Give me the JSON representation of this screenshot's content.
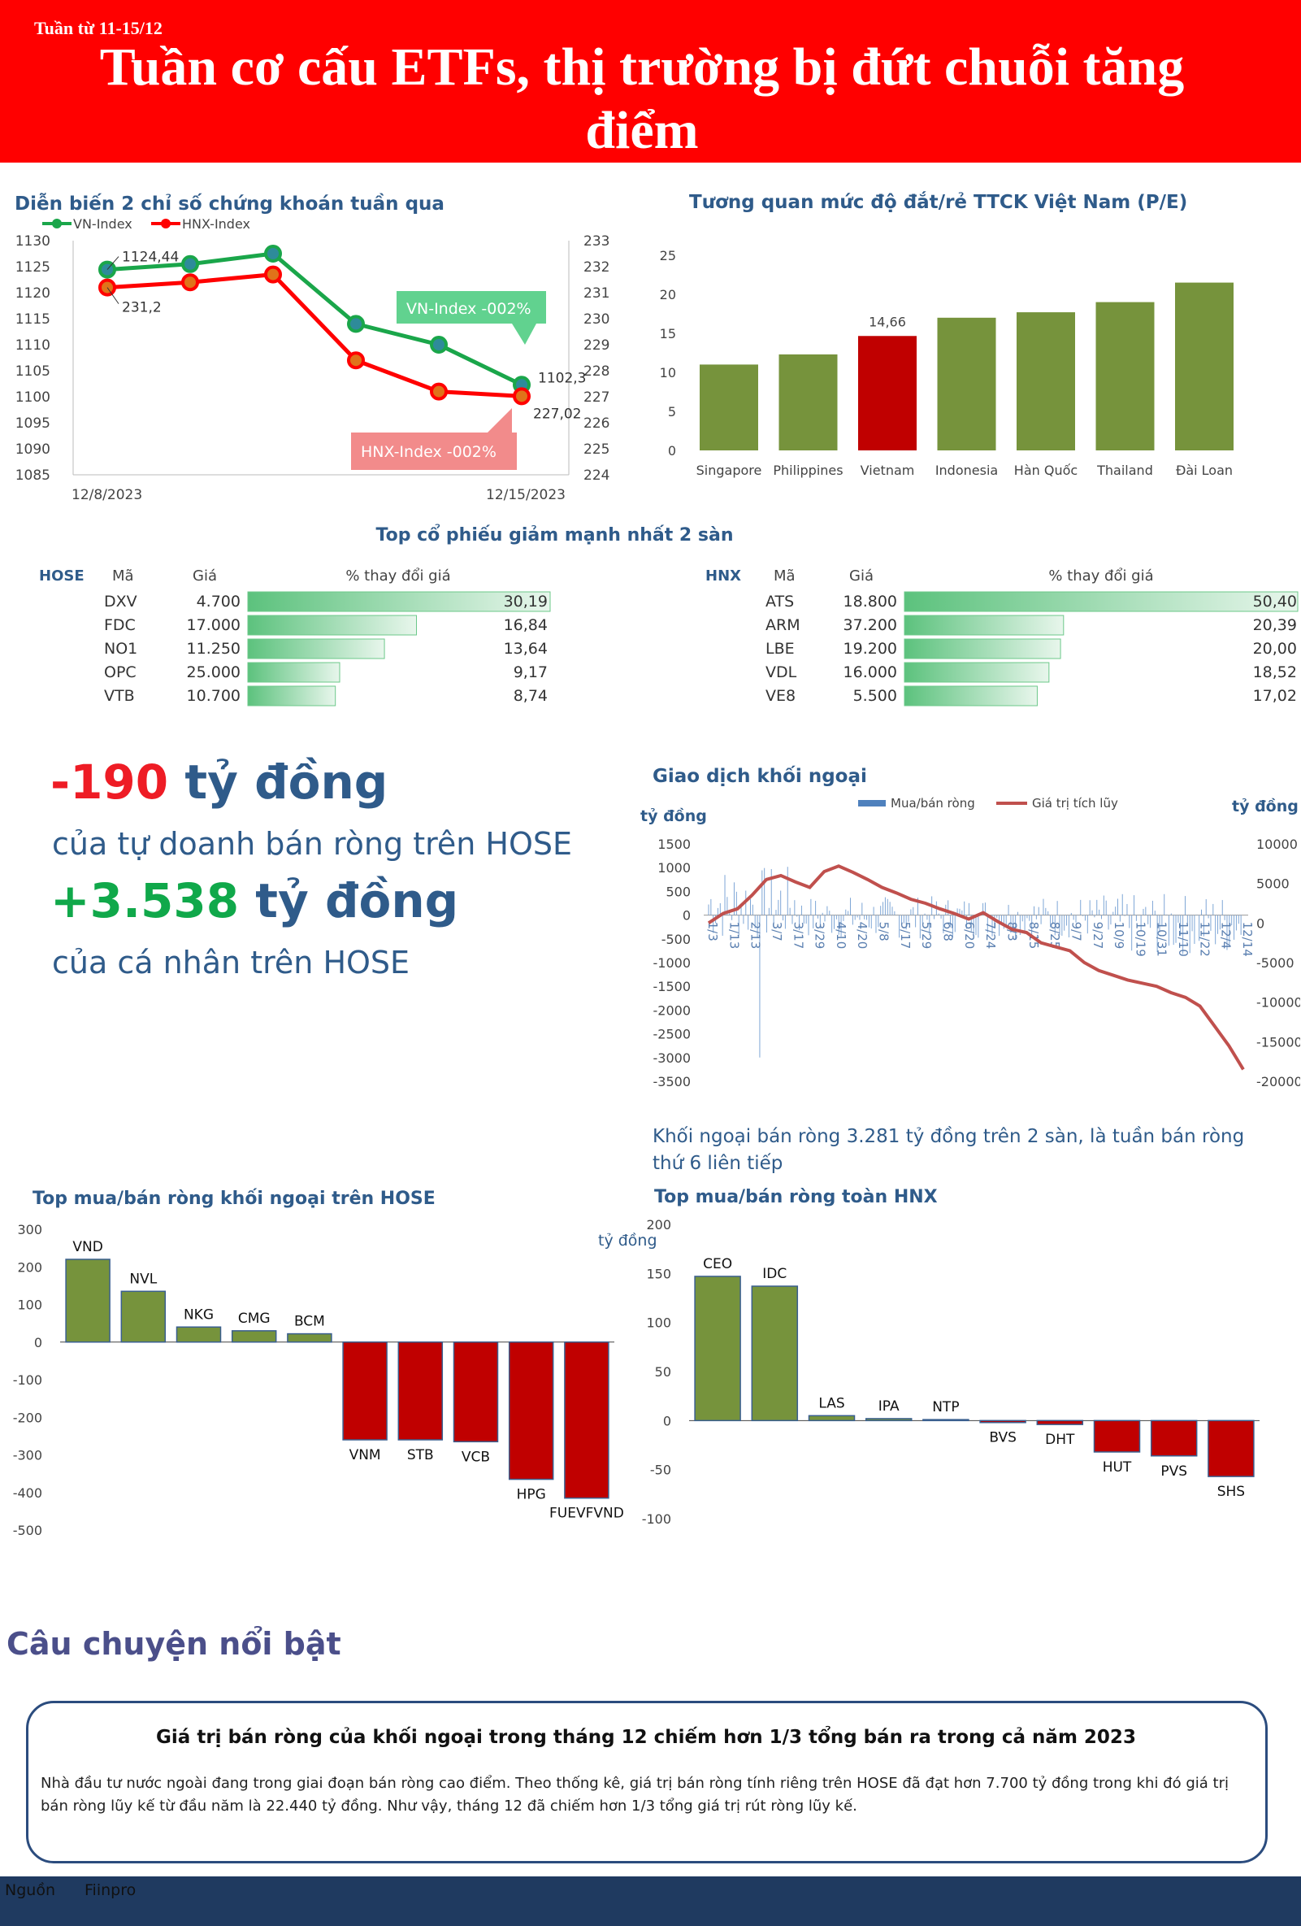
{
  "header": {
    "week": "Tuần từ 11-15/12",
    "title": "Tuần cơ cấu ETFs, thị trường bị đứt chuỗi tăng điểm"
  },
  "index_chart": {
    "title": "Diễn biến 2 chỉ số chứng khoán tuần qua",
    "chart_data": {
      "type": "line",
      "x_labels": [
        "12/8/2023",
        "12/15/2023"
      ],
      "series": [
        {
          "name": "VN-Index",
          "color": "#1aa64a",
          "axis": "left",
          "values": [
            1124.44,
            1125.5,
            1127.5,
            1114.0,
            1110.0,
            1102.3
          ],
          "first_label": "1124,44",
          "last_label": "1102,3"
        },
        {
          "name": "HNX-Index",
          "color": "#ff0000",
          "axis": "right",
          "values": [
            231.2,
            231.4,
            231.7,
            228.4,
            227.2,
            227.02
          ],
          "first_label": "231,2",
          "last_label": "227,02"
        }
      ],
      "left_axis": {
        "min": 1085,
        "max": 1130,
        "ticks": [
          "1130",
          "1125",
          "1120",
          "1115",
          "1110",
          "1105",
          "1100",
          "1095",
          "1090",
          "1085"
        ]
      },
      "right_axis": {
        "min": 224,
        "max": 233,
        "ticks": [
          "233",
          "232",
          "231",
          "230",
          "229",
          "228",
          "227",
          "226",
          "225",
          "224"
        ]
      },
      "callouts": {
        "vn": "VN-Index -002%",
        "hnx": "HNX-Index -002%"
      }
    }
  },
  "pe_chart": {
    "title": "Tương quan mức độ đắt/rẻ TTCK Việt Nam (P/E)",
    "chart_data": {
      "type": "bar",
      "categories": [
        "Singapore",
        "Philippines",
        "Vietnam",
        "Indonesia",
        "Hàn Quốc",
        "Thailand",
        "Đài Loan"
      ],
      "values": [
        11.0,
        12.3,
        14.66,
        17.0,
        17.7,
        19.0,
        21.5
      ],
      "highlight": "Vietnam",
      "highlight_label": "14,66",
      "ylim": [
        0,
        25
      ],
      "ticks": [
        "25",
        "20",
        "15",
        "10",
        "5",
        "0"
      ],
      "colors": {
        "normal": "#76933c",
        "highlight": "#c00000"
      }
    }
  },
  "decliners": {
    "title": "Top cổ phiếu giảm mạnh nhất 2 sàn",
    "hose": {
      "exchange": "HOSE",
      "col_code": "Mã",
      "col_price": "Giá",
      "col_change": "% thay đổi giá",
      "rows": [
        {
          "code": "DXV",
          "price": "4.700",
          "change": 30.19,
          "change_label": "30,19"
        },
        {
          "code": "FDC",
          "price": "17.000",
          "change": 16.84,
          "change_label": "16,84"
        },
        {
          "code": "NO1",
          "price": "11.250",
          "change": 13.64,
          "change_label": "13,64"
        },
        {
          "code": "OPC",
          "price": "25.000",
          "change": 9.17,
          "change_label": "9,17"
        },
        {
          "code": "VTB",
          "price": "10.700",
          "change": 8.74,
          "change_label": "8,74"
        }
      ]
    },
    "hnx": {
      "exchange": "HNX",
      "col_code": "Mã",
      "col_price": "Giá",
      "col_change": "% thay đổi giá",
      "rows": [
        {
          "code": "ATS",
          "price": "18.800",
          "change": 50.4,
          "change_label": "50,40"
        },
        {
          "code": "ARM",
          "price": "37.200",
          "change": 20.39,
          "change_label": "20,39"
        },
        {
          "code": "LBE",
          "price": "19.200",
          "change": 20.0,
          "change_label": "20,00"
        },
        {
          "code": "VDL",
          "price": "16.000",
          "change": 18.52,
          "change_label": "18,52"
        },
        {
          "code": "VE8",
          "price": "5.500",
          "change": 17.02,
          "change_label": "17,02"
        }
      ]
    }
  },
  "highlights": {
    "prop_value": "-190",
    "prop_unit": " tỷ đồng",
    "prop_desc": "của tự doanh bán ròng trên HOSE",
    "retail_value": "+3.538",
    "retail_unit": " tỷ đồng",
    "retail_desc": "của cá nhân trên HOSE"
  },
  "foreign_chart": {
    "title": "Giao dịch khối ngoại",
    "left_unit": "tỷ đồng",
    "right_unit": "tỷ đồng",
    "legend_bar": "Mua/bán ròng",
    "legend_line": "Giá trị tích lũy",
    "chart_data": {
      "type": "bar+line",
      "left_axis": {
        "min": -3500,
        "max": 1500,
        "ticks": [
          "1500",
          "1000",
          "500",
          "0",
          "-500",
          "-1000",
          "-1500",
          "-2000",
          "-2500",
          "-3000",
          "-3500"
        ]
      },
      "right_axis": {
        "min": -20000,
        "max": 10000,
        "ticks": [
          "10000",
          "5000",
          "0",
          "-5000",
          "-10000",
          "-15000",
          "-20000"
        ]
      },
      "x_labels": [
        "1/3",
        "1/13",
        "2/13",
        "3/7",
        "3/17",
        "3/29",
        "4/10",
        "4/20",
        "5/8",
        "5/17",
        "5/29",
        "6/8",
        "6/20",
        "7/24",
        "8/3",
        "8/15",
        "8/25",
        "9/7",
        "9/27",
        "10/9",
        "10/19",
        "10/31",
        "11/10",
        "11/22",
        "12/4",
        "12/14"
      ],
      "cumulative": [
        0,
        1200,
        1800,
        3500,
        5500,
        6000,
        5200,
        4500,
        6500,
        7200,
        6400,
        5500,
        4500,
        3800,
        3000,
        2500,
        1800,
        1200,
        500,
        1300,
        200,
        -800,
        -1200,
        -2500,
        -3000,
        -3500,
        -5000,
        -6000,
        -6600,
        -7200,
        -7600,
        -8000,
        -8800,
        -9400,
        -10500,
        -13000,
        -15500,
        -18500
      ],
      "note": "Khối ngoại bán ròng 3.281 tỷ đồng trên 2 sàn, là tuần bán ròng thứ 6 liên tiếp"
    }
  },
  "hose_foreign": {
    "title": "Top mua/bán ròng khối ngoại trên HOSE",
    "chart_data": {
      "type": "bar",
      "categories": [
        "VND",
        "NVL",
        "NKG",
        "CMG",
        "BCM",
        "VNM",
        "STB",
        "VCB",
        "HPG",
        "FUEVFVND"
      ],
      "values": [
        220,
        135,
        40,
        30,
        22,
        -260,
        -260,
        -265,
        -365,
        -415
      ],
      "ylim": [
        -500,
        300
      ],
      "ticks": [
        "300",
        "200",
        "100",
        "0",
        "-100",
        "-200",
        "-300",
        "-400",
        "-500"
      ],
      "colors": {
        "positive": "#76933c",
        "negative": "#c00000"
      }
    }
  },
  "hnx_foreign": {
    "title": "Top mua/bán ròng toàn HNX",
    "unit": "tỷ đồng",
    "chart_data": {
      "type": "bar",
      "categories": [
        "CEO",
        "IDC",
        "LAS",
        "IPA",
        "NTP",
        "BVS",
        "DHT",
        "HUT",
        "PVS",
        "SHS"
      ],
      "values": [
        147,
        137,
        5,
        2,
        1,
        -2,
        -4,
        -32,
        -36,
        -57
      ],
      "ylim": [
        -100,
        200
      ],
      "ticks": [
        "200",
        "150",
        "100",
        "50",
        "0",
        "-50",
        "-100"
      ],
      "colors": {
        "positive": "#76933c",
        "negative": "#c00000"
      }
    }
  },
  "story": {
    "heading": "Câu chuyện nổi bật",
    "title": "Giá trị bán ròng của khối ngoại trong tháng 12 chiếm hơn 1/3 tổng bán ra trong cả năm 2023",
    "body": "Nhà đầu tư nước ngoài đang trong giai đoạn bán ròng cao điểm. Theo thống kê, giá trị bán ròng tính riêng trên HOSE đã đạt hơn 7.700 tỷ đồng trong khi đó giá trị bán ròng lũy kế từ đầu năm là 22.440 tỷ đồng. Như vậy, tháng 12 đã chiếm hơn 1/3 tổng giá trị rút ròng lũy kế."
  },
  "footer": {
    "source_label": "Nguồn",
    "source": "Fiinpro"
  }
}
